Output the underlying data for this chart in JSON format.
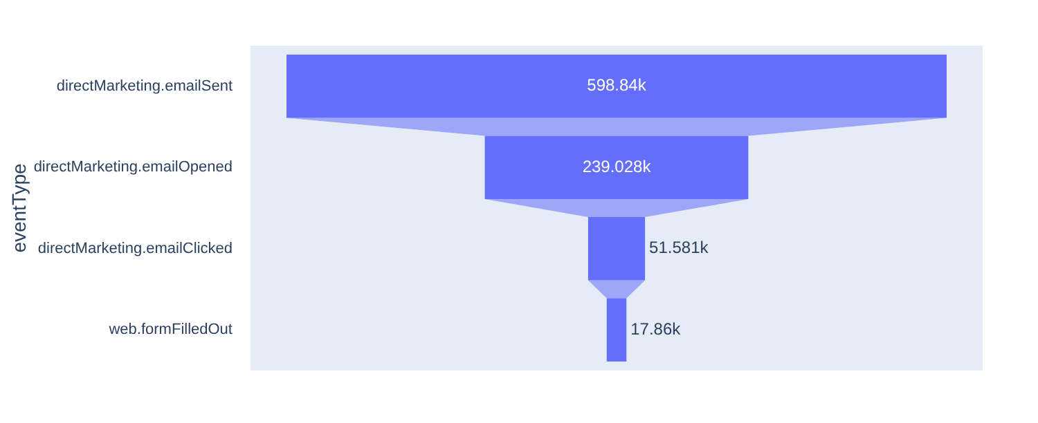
{
  "chart_data": {
    "type": "other",
    "ylabel": "eventType",
    "categories": [
      "directMarketing.emailSent",
      "directMarketing.emailOpened",
      "directMarketing.emailClicked",
      "web.formFilledOut"
    ],
    "values": [
      598840,
      239028,
      51581,
      17860
    ],
    "value_labels": [
      "598.84k",
      "239.028k",
      "51.581k",
      "17.86k"
    ],
    "color": "#636efa"
  }
}
